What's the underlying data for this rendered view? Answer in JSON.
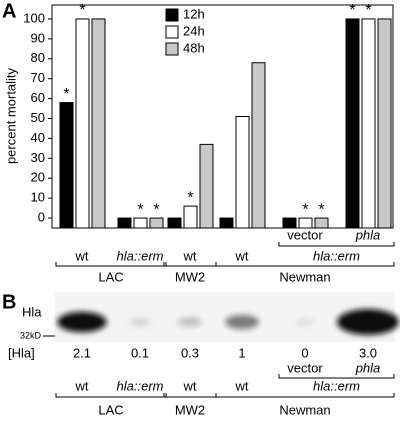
{
  "panels": [
    "A",
    "B"
  ],
  "chart_data": {
    "type": "bar",
    "y_label": "percent mortality",
    "ylim": [
      -5,
      107
    ],
    "yticks": [
      0,
      10,
      20,
      30,
      40,
      50,
      60,
      70,
      80,
      90,
      100
    ],
    "groups": [
      {
        "name": "LAC",
        "categories": [
          "wt",
          "hla::erm"
        ]
      },
      {
        "name": "MW2",
        "categories": [
          "wt"
        ]
      },
      {
        "name": "Newman",
        "categories": [
          "wt",
          {
            "name": "hla::erm",
            "categories": [
              "vector",
              "phla"
            ]
          }
        ]
      }
    ],
    "series": [
      {
        "name": "12h",
        "color": "#000000",
        "values": [
          58,
          0,
          0,
          0,
          0,
          100
        ],
        "significance": [
          "*",
          null,
          null,
          null,
          null,
          "*"
        ]
      },
      {
        "name": "24h",
        "color": "#ffffff",
        "values": [
          100,
          0,
          6,
          51,
          0,
          100
        ],
        "significance": [
          "*",
          "*",
          "*",
          null,
          "*",
          "*"
        ]
      },
      {
        "name": "48h",
        "color": "#c8c8c8",
        "values": [
          100,
          0,
          37,
          78,
          0,
          100
        ],
        "significance": [
          null,
          "*",
          null,
          null,
          "*",
          null
        ]
      }
    ]
  },
  "blot": {
    "band_label": "Hla",
    "marker": "32kD",
    "quantity_label": "[Hla]",
    "values": [
      2.1,
      0.1,
      0.3,
      1,
      0,
      3
    ],
    "value_labels": [
      "2.1",
      "0.1",
      "0.3",
      "1",
      "0",
      "3.0"
    ]
  }
}
